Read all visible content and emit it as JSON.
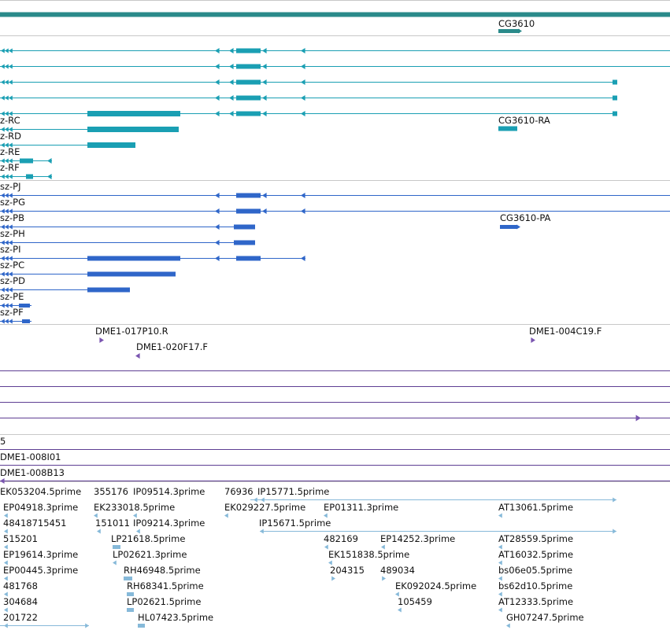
{
  "colors": {
    "background": "#ffffff",
    "separator": "#c8c8c8",
    "gene_bar": "#2a8a8a",
    "transcript": "#1a9fb3",
    "protein": "#2f66c9",
    "clone_end": "#7a55b0",
    "clone_line": "#5e3e93",
    "est": "#86b9d9"
  },
  "gene_track": {
    "label": "CG3610"
  },
  "transcript_track": {
    "labels": [
      "z-RC",
      "z-RD",
      "z-RE",
      "z-RF",
      "CG3610-RA"
    ]
  },
  "protein_track": {
    "labels": [
      "sz-PJ",
      "sz-PG",
      "sz-PB",
      "sz-PH",
      "sz-PI",
      "sz-PC",
      "sz-PD",
      "sz-PE",
      "sz-PF",
      "CG3610-PA"
    ]
  },
  "clone_end_track": {
    "labels": [
      "DME1-017P10.R",
      "DME1-020F17.F",
      "DME1-004C19.F"
    ]
  },
  "clone_track": {
    "labels": [
      "5",
      "DME1-008I01",
      "DME1-008B13"
    ]
  },
  "est_track": {
    "labels": [
      "EK053204.5prime",
      "355176",
      "IP09514.3prime",
      "76936",
      "IP15771.5prime",
      "EP04918.3prime",
      "EK233018.5prime",
      "EK029227.5prime",
      "EP01311.3prime",
      "AT13061.5prime",
      "48418715451",
      "151011",
      "IP09214.3prime",
      "IP15671.5prime",
      "515201",
      "LP21618.5prime",
      "482169",
      "EP14252.3prime",
      "AT28559.5prime",
      "EP19614.3prime",
      "LP02621.3prime",
      "EK151838.5prime",
      "AT16032.5prime",
      "EP00445.3prime",
      "RH46948.5prime",
      "204315",
      "489034",
      "bs06e05.5prime",
      "481768",
      "RH68341.5prime",
      "EK092024.5prime",
      "bs62d10.5prime",
      "304684",
      "LP02621.5prime",
      "105459",
      "AT12333.5prime",
      "201722",
      "HL07423.5prime",
      "GH07247.5prime"
    ]
  }
}
